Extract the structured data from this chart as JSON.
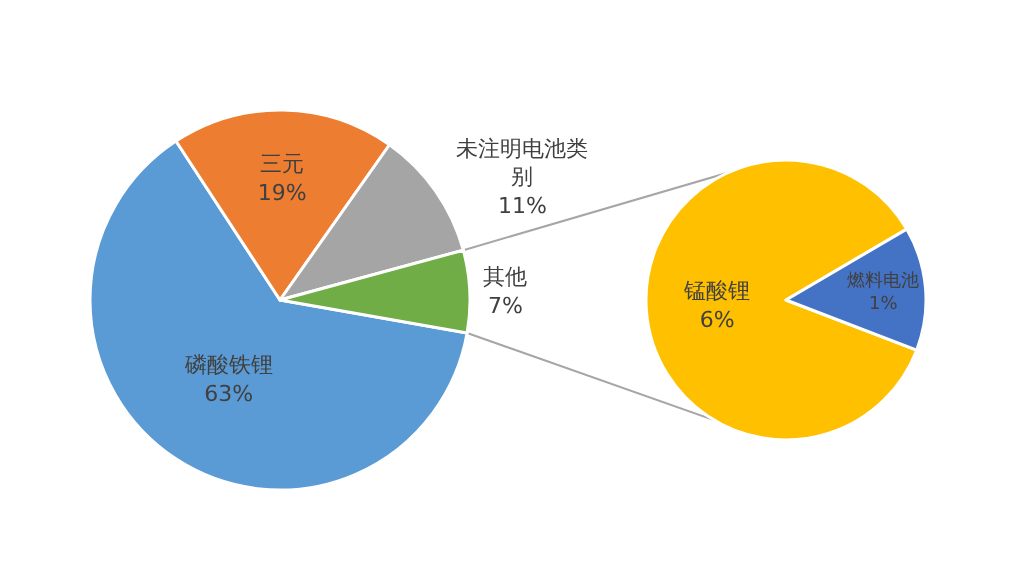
{
  "chart_data": [
    {
      "type": "pie",
      "categories": [
        "磷酸铁锂",
        "三元",
        "未注明电池类别",
        "其他"
      ],
      "values": [
        63,
        19,
        11,
        7
      ],
      "colors": [
        "#5b9bd5",
        "#ed7d31",
        "#a5a5a5",
        "#70ad47"
      ],
      "value_labels": [
        "63%",
        "19%",
        "11%",
        "7%"
      ]
    },
    {
      "type": "pie",
      "categories": [
        "锰酸锂",
        "燃料电池"
      ],
      "values": [
        6,
        1
      ],
      "colors": [
        "#ffc000",
        "#4472c4"
      ],
      "value_labels": [
        "6%",
        "1%"
      ]
    }
  ]
}
